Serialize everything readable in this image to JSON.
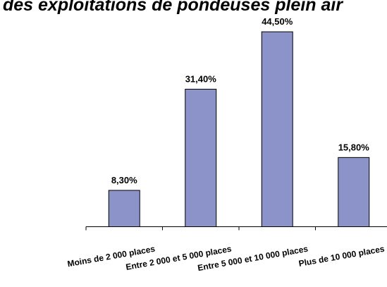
{
  "chart_data": {
    "type": "bar",
    "title": "des exploitations de pondeuses plein air",
    "categories": [
      "Moins de 2 000 places",
      "Entre 2 000 et 5 000 places",
      "Entre 5 000 et 10 000 places",
      "Plus de 10 000 places"
    ],
    "values": [
      8.3,
      31.4,
      44.5,
      15.8
    ],
    "value_labels": [
      "8,30%",
      "31,40%",
      "44,50%",
      "15,80%"
    ],
    "ylim": [
      0,
      45.8
    ],
    "grid": false,
    "legend": "none",
    "bar_color": "#8b93c9"
  }
}
